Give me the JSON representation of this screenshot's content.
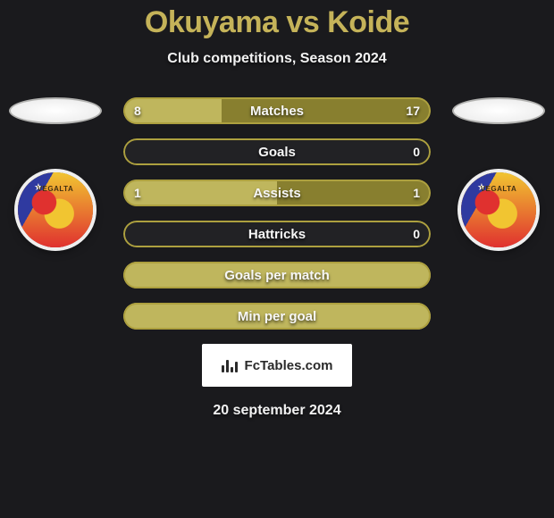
{
  "title": "Okuyama vs Koide",
  "subtitle": "Club competitions, Season 2024",
  "date": "20 september 2024",
  "footer_text": "FcTables.com",
  "colors": {
    "background": "#1a1a1d",
    "accent": "#c5b359",
    "text_light": "#f2f2f2",
    "bar_border": "#ada03f",
    "bar_track": "#222225",
    "bar_fill_light": "#bfb65d",
    "bar_fill_dark": "#887f2f",
    "emblem_border": "#efefef"
  },
  "player_left": {
    "name": "Okuyama",
    "emblem_label": "VEGALTA"
  },
  "player_right": {
    "name": "Koide",
    "emblem_label": "VEGALTA"
  },
  "stats": [
    {
      "label": "Matches",
      "left_value": "8",
      "right_value": "17",
      "left_pct": 32,
      "right_pct": 68,
      "left_fill": "#bfb65d",
      "right_fill": "#887f2f",
      "track": "#222225",
      "show_vals": true
    },
    {
      "label": "Goals",
      "left_value": "",
      "right_value": "0",
      "left_pct": 0,
      "right_pct": 0,
      "left_fill": "#bfb65d",
      "right_fill": "#887f2f",
      "track": "#222225",
      "show_vals": true
    },
    {
      "label": "Assists",
      "left_value": "1",
      "right_value": "1",
      "left_pct": 50,
      "right_pct": 50,
      "left_fill": "#bfb65d",
      "right_fill": "#887f2f",
      "track": "#222225",
      "show_vals": true
    },
    {
      "label": "Hattricks",
      "left_value": "",
      "right_value": "0",
      "left_pct": 0,
      "right_pct": 0,
      "left_fill": "#bfb65d",
      "right_fill": "#887f2f",
      "track": "#222225",
      "show_vals": true
    },
    {
      "label": "Goals per match",
      "left_value": "",
      "right_value": "",
      "left_pct": 100,
      "right_pct": 0,
      "left_fill": "#bfb65d",
      "right_fill": "#887f2f",
      "track": "#bfb65d",
      "show_vals": false
    },
    {
      "label": "Min per goal",
      "left_value": "",
      "right_value": "",
      "left_pct": 100,
      "right_pct": 0,
      "left_fill": "#bfb65d",
      "right_fill": "#887f2f",
      "track": "#bfb65d",
      "show_vals": false
    }
  ]
}
